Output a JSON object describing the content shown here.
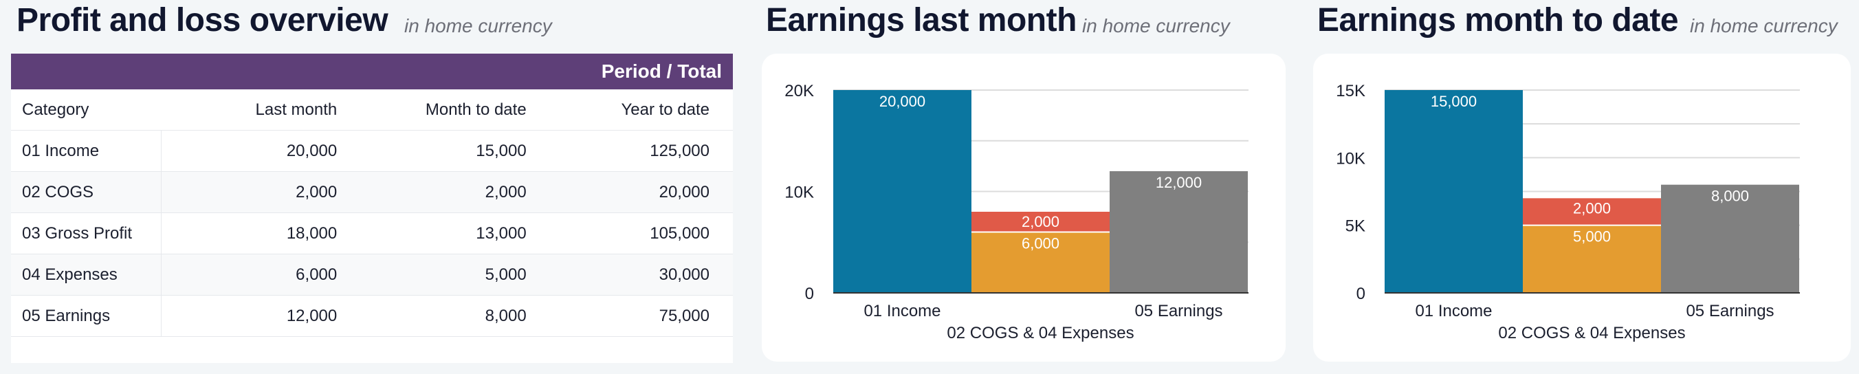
{
  "table_panel": {
    "title": "Profit and loss overview",
    "subtitle": "in home currency",
    "header_label": "Period / Total",
    "columns": [
      "Category",
      "Last month",
      "Month to date",
      "Year to date"
    ],
    "rows": [
      [
        "01 Income",
        "20,000",
        "15,000",
        "125,000"
      ],
      [
        "02 COGS",
        "2,000",
        "2,000",
        "20,000"
      ],
      [
        "03 Gross Profit",
        "18,000",
        "13,000",
        "105,000"
      ],
      [
        "04 Expenses",
        "6,000",
        "5,000",
        "30,000"
      ],
      [
        "05 Earnings",
        "12,000",
        "8,000",
        "75,000"
      ]
    ]
  },
  "chart_last_month": {
    "title": "Earnings last month",
    "subtitle": "in home currency"
  },
  "chart_month_to_date": {
    "title": "Earnings month to date",
    "subtitle": "in home currency"
  },
  "colors": {
    "income": "#0b76a0",
    "cogs": "#e05a48",
    "expenses": "#e49c30",
    "earnings": "#808080",
    "header": "#5e3f78"
  },
  "chart_data": [
    {
      "type": "bar",
      "title": "Earnings last month",
      "categories": [
        "01 Income",
        "02 COGS & 04 Expenses",
        "05 Earnings"
      ],
      "series": [
        {
          "name": "",
          "values": [
            20000,
            0,
            0
          ]
        },
        {
          "name": "",
          "values": [
            0,
            6000,
            0
          ]
        },
        {
          "name": "",
          "values": [
            0,
            2000,
            0
          ]
        },
        {
          "name": "",
          "values": [
            0,
            0,
            12000
          ]
        }
      ],
      "data_labels": [
        "20,000",
        "6,000",
        "2,000",
        "12,000"
      ],
      "yticks": [
        "0",
        "10K",
        "20K"
      ],
      "ylim": [
        0,
        20000
      ],
      "grid": true
    },
    {
      "type": "bar",
      "title": "Earnings month to date",
      "categories": [
        "01 Income",
        "02 COGS & 04 Expenses",
        "05 Earnings"
      ],
      "series": [
        {
          "name": "",
          "values": [
            15000,
            0,
            0
          ]
        },
        {
          "name": "",
          "values": [
            0,
            5000,
            0
          ]
        },
        {
          "name": "",
          "values": [
            0,
            2000,
            0
          ]
        },
        {
          "name": "",
          "values": [
            0,
            0,
            8000
          ]
        }
      ],
      "data_labels": [
        "15,000",
        "5,000",
        "2,000",
        "8,000"
      ],
      "yticks": [
        "0",
        "5K",
        "10K",
        "15K"
      ],
      "ylim": [
        0,
        15000
      ],
      "grid": true
    }
  ]
}
